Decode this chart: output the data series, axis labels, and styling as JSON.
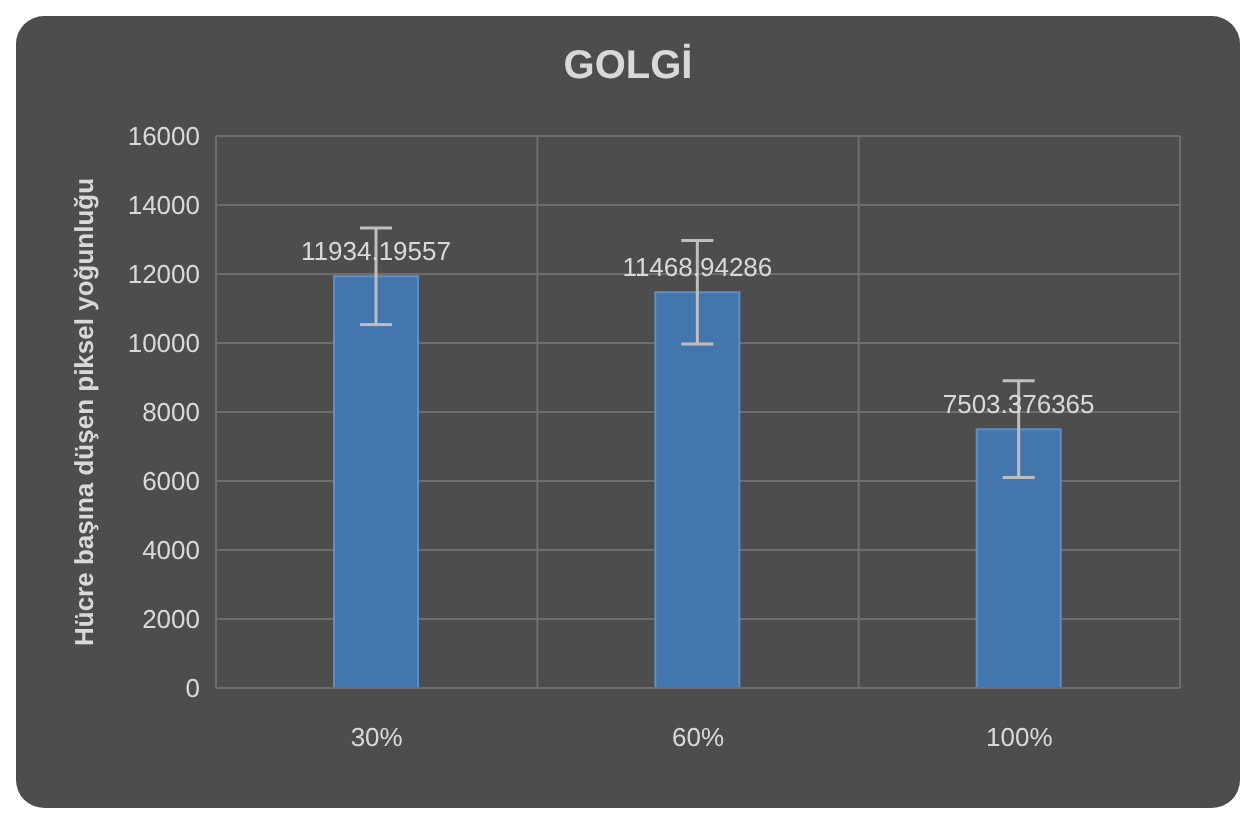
{
  "chart_data": {
    "type": "bar",
    "title": "GOLGİ",
    "ylabel": "Hücre başına düşen piksel yoğunluğu",
    "categories": [
      "30%",
      "60%",
      "100%"
    ],
    "values": [
      11934.19557,
      11468.94286,
      7503.376365
    ],
    "errors": [
      1400,
      1500,
      1400
    ],
    "color": "#4376ad",
    "ylim": [
      0,
      16000
    ],
    "yticks": [
      0,
      2000,
      4000,
      6000,
      8000,
      10000,
      12000,
      14000,
      16000
    ],
    "grid": true,
    "data_labels": true
  }
}
